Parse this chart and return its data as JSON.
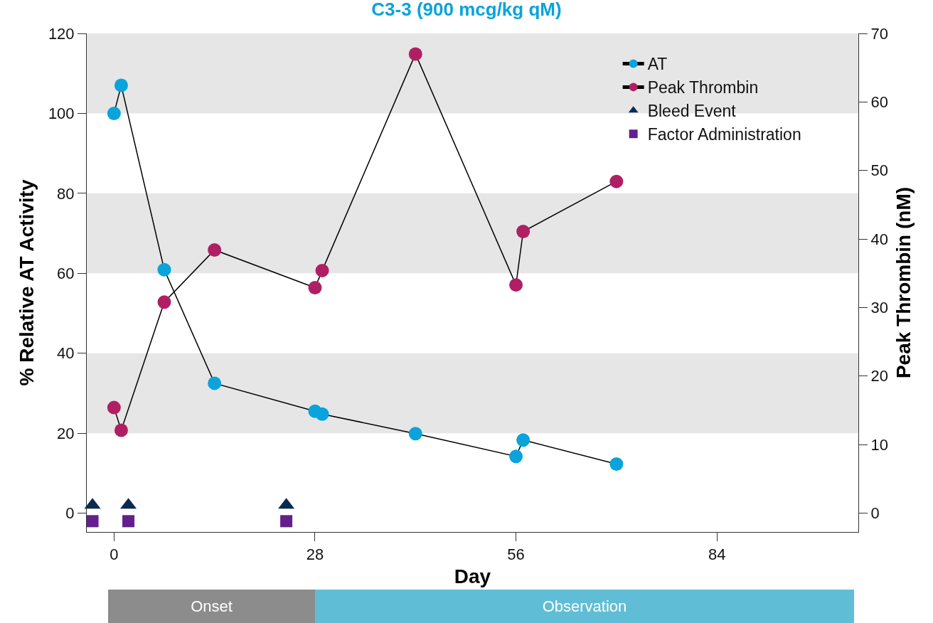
{
  "chart_data": [
    {
      "type": "line",
      "title": "C3-3 (900 mcg/kg qM)",
      "xlabel": "Day",
      "ylabel": "% Relative AT Activity",
      "y2label": "Peak Thrombin (nM)",
      "xlim": [
        -3.8,
        103.7
      ],
      "xticks": [
        0,
        28,
        56,
        84
      ],
      "ylim": [
        -4.7,
        120
      ],
      "yticks": [
        0,
        20,
        40,
        60,
        80,
        100,
        120
      ],
      "y2lim": [
        -2.75,
        70
      ],
      "y2ticks": [
        0,
        10,
        20,
        30,
        40,
        50,
        60,
        70
      ],
      "grid": false,
      "legend": "top right",
      "marker": "circle",
      "line_style": "solid",
      "series": [
        {
          "name": "AT",
          "type": "line",
          "color": "#0aa3dc",
          "x": [
            0,
            1,
            7,
            14,
            28,
            29,
            42,
            56,
            57,
            70
          ],
          "values": [
            100,
            107,
            60.9,
            32.5,
            25.5,
            24.8,
            19.9,
            14.2,
            18.3,
            12.3
          ]
        },
        {
          "name": "Peak Thrombin",
          "type": "line",
          "axis": "y2",
          "color": "#b01f63",
          "x": [
            0,
            1,
            7,
            14,
            28,
            29,
            42,
            56,
            57,
            70
          ],
          "values": [
            15.4,
            12.1,
            30.8,
            38.4,
            32.9,
            35.4,
            67,
            33.3,
            41.1,
            48.4
          ]
        },
        {
          "name": "Bleed Event",
          "type": "scatter",
          "marker": "triangle",
          "color": "#0b2a4f",
          "x": [
            -3,
            2,
            24
          ],
          "values": [
            2,
            2,
            2
          ]
        },
        {
          "name": "Factor Administration",
          "type": "scatter",
          "marker": "square",
          "color": "#63208c",
          "x": [
            -3,
            2,
            24
          ],
          "values": [
            -2,
            -2,
            -2
          ]
        }
      ],
      "bands": [
        {
          "axis": "y",
          "from": 20,
          "to": 40,
          "color": "#e6e6e6"
        },
        {
          "axis": "y",
          "from": 60,
          "to": 80,
          "color": "#e6e6e6"
        },
        {
          "axis": "y",
          "from": 100,
          "to": 120,
          "color": "#e6e6e6"
        }
      ]
    },
    {
      "type": "other",
      "annotations": [
        "Onset",
        "Observation"
      ],
      "colors": [
        "#8c8c8c",
        "#5fbed5"
      ]
    }
  ]
}
